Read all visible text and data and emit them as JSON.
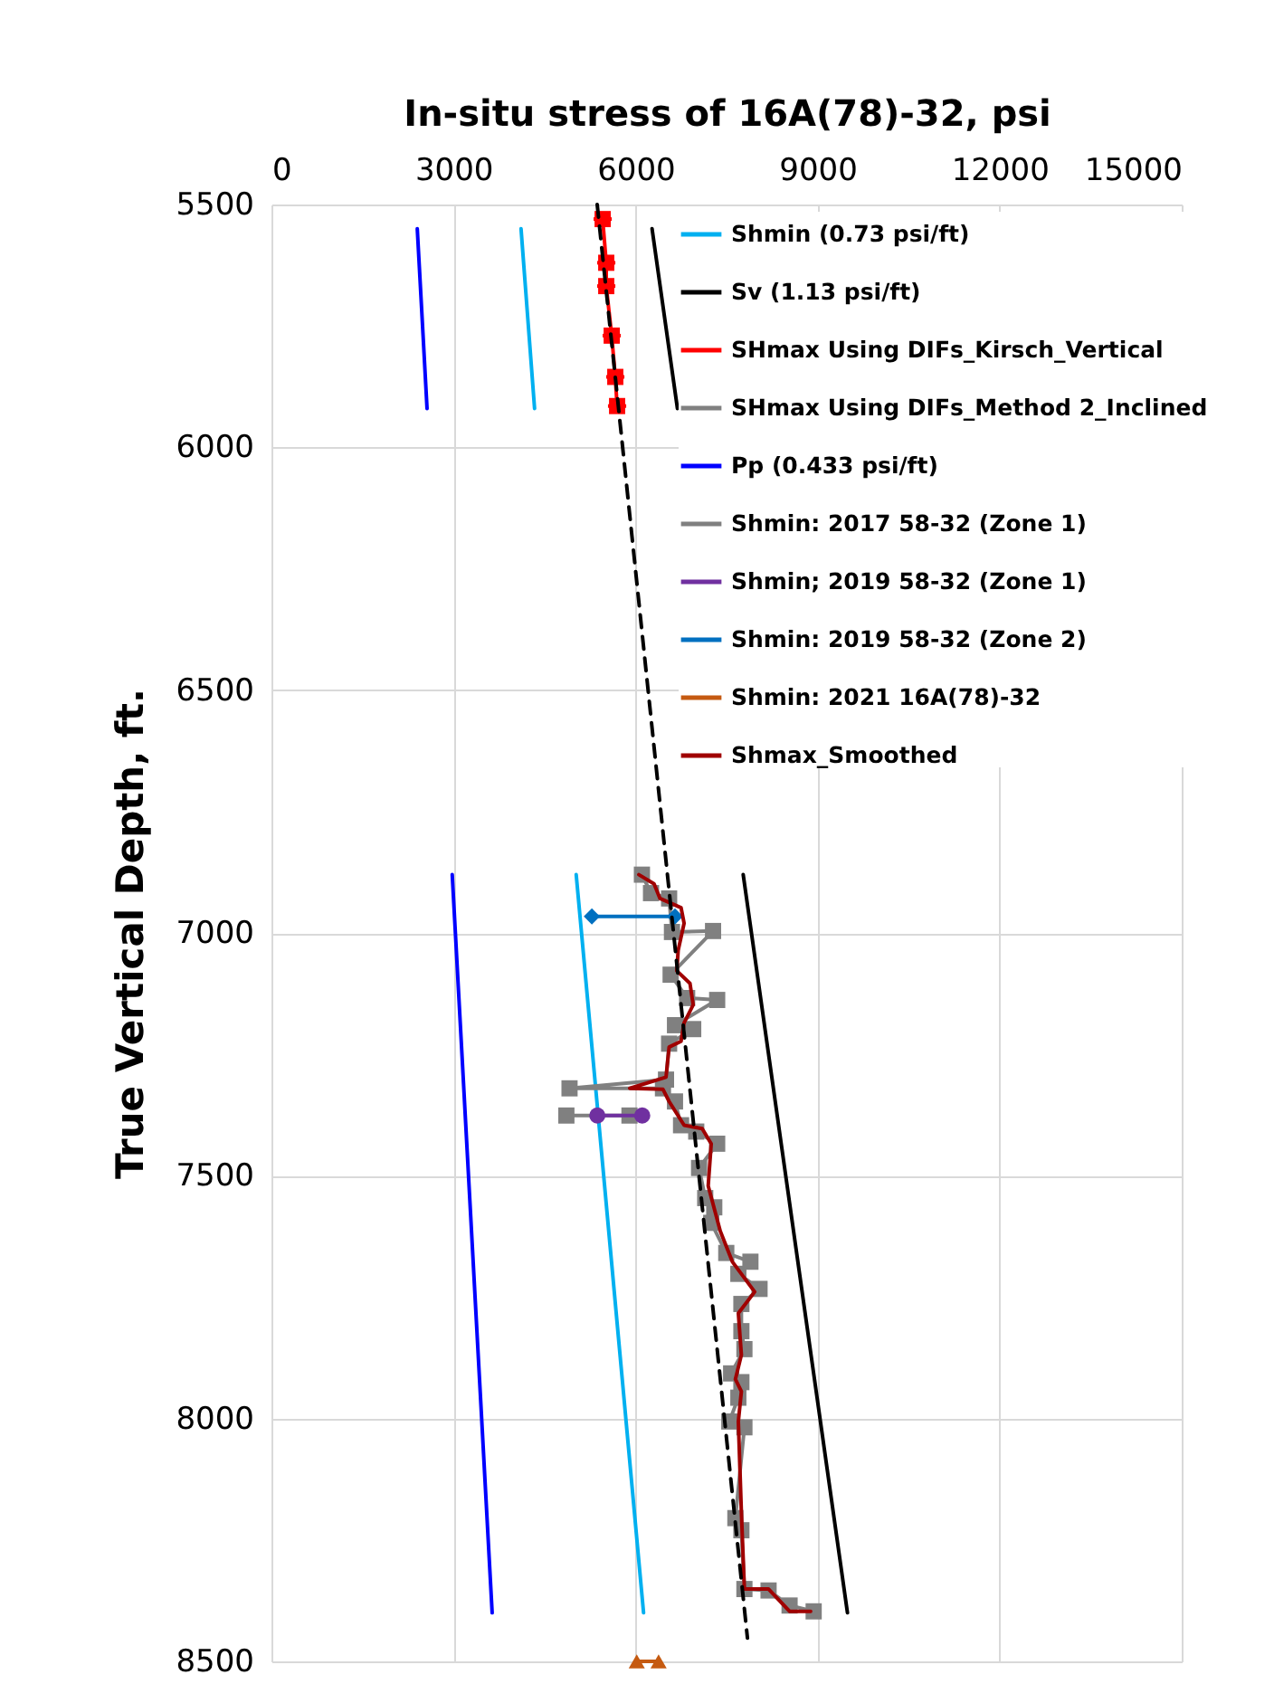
{
  "chart_data": {
    "type": "line",
    "xlabel": "In-situ stress of 16A(78)-32, psi",
    "ylabel": "True Vertical Depth, ft.",
    "xlim": [
      0,
      15000
    ],
    "xticks": [
      0,
      3000,
      6000,
      9000,
      12000,
      15000
    ],
    "ylim": [
      8500,
      5500
    ],
    "yticks": [
      5500,
      6000,
      6500,
      7000,
      7500,
      8000,
      8500
    ],
    "grid": true,
    "legend": "top right",
    "series": [
      {
        "name": "Shmin (0.73 psi/ft)",
        "color": "#00b0f0",
        "marker": "none",
        "line_style": "solid",
        "x": [
          4113,
          4336,
          null,
          5022,
          6132
        ],
        "values": [
          5550,
          5920,
          null,
          6880,
          8400
        ]
      },
      {
        "name": "Sv (1.13 psi/ft)",
        "color": "#000000",
        "marker": "none",
        "line_style": "solid",
        "x": [
          6272,
          6690,
          null,
          7774,
          9492
        ],
        "values": [
          5550,
          5920,
          null,
          6880,
          8400
        ]
      },
      {
        "name": "SHmax Using DIFs_Kirsch_Vertical",
        "color": "#ff0000",
        "marker": "square",
        "line_style": "solid",
        "x": [
          5458,
          5517,
          5517,
          5607,
          5666,
          5696
        ],
        "values": [
          5530,
          5620,
          5668,
          5770,
          5855,
          5915
        ],
        "xerrors": [
          150,
          150,
          150,
          150,
          150,
          150
        ]
      },
      {
        "name": "SHmax Using DIFs_Method 2_Inclined",
        "color": "#808080",
        "marker": "square",
        "line_style": "solid",
        "x": [
          6105,
          6255,
          6553,
          6600,
          7277,
          6578,
          6850,
          7345,
          6650,
          6950,
          6553,
          6502,
          4912,
          6452,
          6650,
          6750,
          7000,
          7345,
          7047,
          7148,
          7297,
          7247,
          7495,
          7893,
          7694,
          8043,
          7744,
          7744,
          7794,
          7575,
          7744,
          7694,
          7545,
          7794,
          7645,
          7744,
          7794,
          8192,
          8538,
          8935
        ],
        "values": [
          6880,
          6918,
          6929,
          6998,
          6996,
          7086,
          7134,
          7138,
          7190,
          7198,
          7228,
          7302,
          7320,
          7320,
          7347,
          7396,
          7409,
          7434,
          7484,
          7546,
          7565,
          7597,
          7659,
          7677,
          7702,
          7733,
          7764,
          7820,
          7857,
          7907,
          7925,
          7957,
          8006,
          8018,
          8205,
          8230,
          8351,
          8354,
          8385,
          8397
        ]
      },
      {
        "name": "Pp (0.433 psi/ft)",
        "color": "#0000ff",
        "marker": "none",
        "line_style": "solid",
        "x": [
          2403,
          2564,
          null,
          2979,
          3637
        ],
        "values": [
          5550,
          5920,
          null,
          6880,
          8400
        ]
      },
      {
        "name": "Shmin: 2017 58-32 (Zone 1)",
        "color": "#808080",
        "marker": "square",
        "line_style": "solid",
        "x": [
          4860,
          5900
        ],
        "values": [
          7376,
          7376
        ]
      },
      {
        "name": "Shmin; 2019 58-32 (Zone 1)",
        "color": "#7030a0",
        "marker": "circle",
        "line_style": "solid",
        "x": [
          5370,
          6110
        ],
        "values": [
          7376,
          7376
        ]
      },
      {
        "name": "Shmin: 2019 58-32 (Zone 2)",
        "color": "#0070c0",
        "marker": "diamond",
        "line_style": "solid",
        "x": [
          5280,
          6650
        ],
        "values": [
          6966,
          6966
        ]
      },
      {
        "name": "Shmin: 2021 16A(78)-32",
        "color": "#c55a11",
        "marker": "triangle",
        "line_style": "solid",
        "x": [
          6020,
          6380
        ],
        "values": [
          8500,
          8500
        ]
      },
      {
        "name": "Shmax_Smoothed",
        "color": "#a00000",
        "marker": "none",
        "line_style": "solid",
        "x": [
          6055,
          6305,
          6403,
          6750,
          6800,
          6702,
          6680,
          6897,
          6950,
          6800,
          6750,
          6553,
          6502,
          5905,
          6452,
          6553,
          6800,
          7098,
          7247,
          7197,
          7396,
          7595,
          7963,
          7694,
          7744,
          7645,
          7744,
          7694,
          7744,
          7794,
          8192,
          8538,
          8885
        ],
        "values": [
          6880,
          6899,
          6929,
          6948,
          6980,
          7036,
          7078,
          7104,
          7148,
          7185,
          7223,
          7235,
          7297,
          7320,
          7322,
          7347,
          7396,
          7403,
          7434,
          7521,
          7614,
          7677,
          7739,
          7783,
          7869,
          7919,
          7944,
          8006,
          8193,
          8351,
          8351,
          8397,
          8397
        ]
      },
      {
        "color": "#000000",
        "marker": "none",
        "line_style": "dashed",
        "x": [
          5368,
          7844
        ],
        "values": [
          5500,
          8452
        ]
      }
    ]
  }
}
